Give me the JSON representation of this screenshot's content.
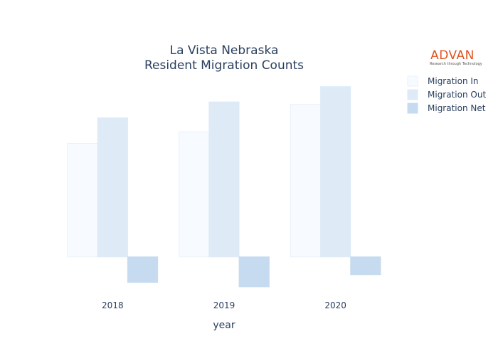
{
  "logo": {
    "name": "ADVAN",
    "tagline": "Research through Technology"
  },
  "chart_data": {
    "type": "bar",
    "title": "La Vista Nebraska",
    "subtitle": "Resident Migration Counts",
    "xlabel": "year",
    "ylabel": "",
    "categories": [
      "2018",
      "2019",
      "2020"
    ],
    "series": [
      {
        "name": "Migration In",
        "values": [
          1780,
          1960,
          2390
        ],
        "color": "#f7fbff",
        "stroke": "#e9f1fa"
      },
      {
        "name": "Migration Out",
        "values": [
          2180,
          2430,
          2670
        ],
        "color": "#deebf7",
        "stroke": "#deebf7"
      },
      {
        "name": "Migration Net",
        "values": [
          -400,
          -470,
          -280
        ],
        "color": "#c6dbef",
        "stroke": "#c6dbef"
      }
    ],
    "ylim": [
      -550,
      2800
    ],
    "grid": false,
    "y_ticks_shown": false,
    "legend_position": "top-right",
    "barmode": "group"
  }
}
